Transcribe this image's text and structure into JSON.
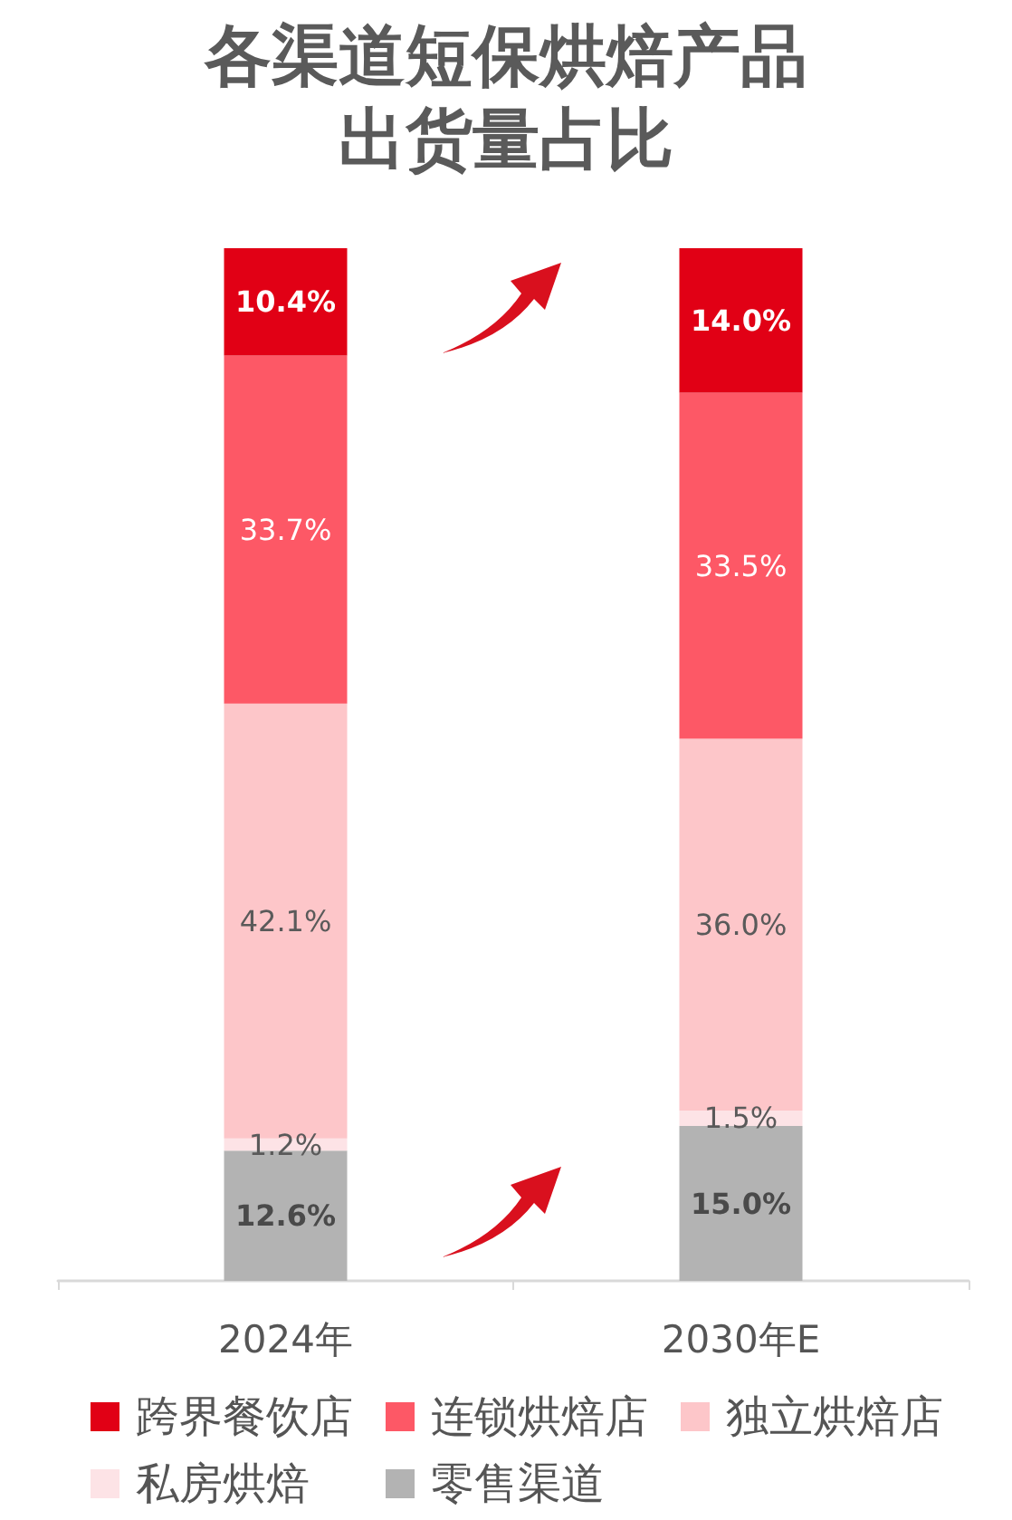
{
  "chart_data": {
    "type": "bar",
    "stacked": true,
    "title": "各渠道短保烘焙产品出货量占比",
    "categories": [
      "2024年",
      "2030年E"
    ],
    "tick_labels": "x",
    "legend": "bottom",
    "series": [
      {
        "name": "零售渠道",
        "color": "#b3b3b3",
        "values": [
          12.6,
          15.0
        ],
        "value_labels": [
          "12.6%",
          "15.0%"
        ]
      },
      {
        "name": "私房烘焙",
        "color": "#fde3e6",
        "values": [
          1.2,
          1.5
        ],
        "value_labels": [
          "1.2%",
          "1.5%"
        ]
      },
      {
        "name": "独立烘焙店",
        "color": "#fdc6c9",
        "values": [
          42.1,
          36.0
        ],
        "value_labels": [
          "42.1%",
          "36.0%"
        ]
      },
      {
        "name": "连锁烘焙店",
        "color": "#fd5866",
        "values": [
          33.7,
          33.5
        ],
        "value_labels": [
          "33.7%",
          "33.5%"
        ]
      },
      {
        "name": "跨界餐饮店",
        "color": "#e10015",
        "values": [
          10.4,
          14.0
        ],
        "value_labels": [
          "10.4%",
          "14.0%"
        ]
      }
    ]
  }
}
